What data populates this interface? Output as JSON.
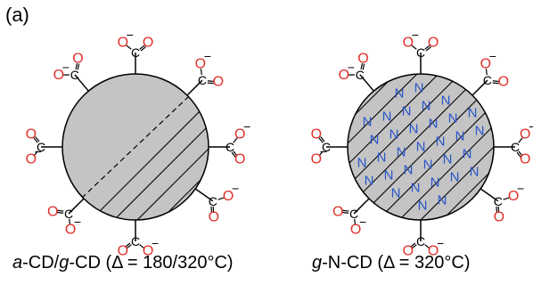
{
  "figure": {
    "panel_label": "(a)",
    "atoms": {
      "oxygen": "O",
      "carbon": "C",
      "nitrogen": "N"
    },
    "charge": "−",
    "colors": {
      "oxygen": "#e0302a",
      "nitrogen": "#2a55c9",
      "particle_fill": "#c4c4c4",
      "bond": "#000000"
    }
  },
  "left_particle": {
    "caption": {
      "p1": "a",
      "p2": "-CD/",
      "p3": "g",
      "p4": "-CD (Δ = 180/320°C)"
    }
  },
  "right_particle": {
    "caption": {
      "p1": "g",
      "p2": "-N-CD (Δ = 320°C)"
    }
  }
}
